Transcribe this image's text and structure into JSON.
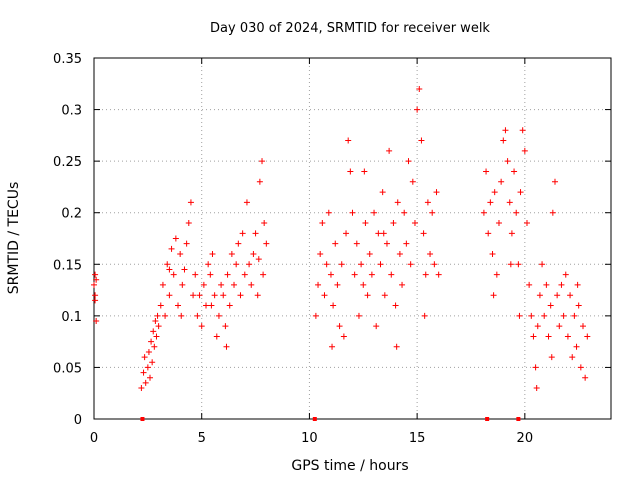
{
  "chart_data": {
    "type": "scatter",
    "title": "Day 030 of 2024, SRMTID for receiver welk",
    "xlabel": "GPS time / hours",
    "ylabel": "SRMTID / TECUs",
    "xlim": [
      0,
      24
    ],
    "ylim": [
      0,
      0.35
    ],
    "xticks": [
      0,
      5,
      10,
      15,
      20
    ],
    "xtick_labels": [
      "0",
      "5",
      "10",
      "15",
      "20"
    ],
    "yticks": [
      0,
      0.05,
      0.1,
      0.15,
      0.2,
      0.25,
      0.3,
      0.35
    ],
    "ytick_labels": [
      "0",
      "0.05",
      "0.1",
      "0.15",
      "0.2",
      "0.25",
      "0.3",
      "0.35"
    ],
    "grid": true,
    "marker": "plus",
    "color": "#ff0000",
    "gap_markers_x": [
      2.25,
      10.25,
      18.25,
      19.7
    ],
    "series": [
      {
        "name": "SRMTID",
        "points": [
          [
            0.0,
            0.13
          ],
          [
            0.05,
            0.14
          ],
          [
            0.05,
            0.12
          ],
          [
            0.1,
            0.095
          ],
          [
            0.05,
            0.115
          ],
          [
            0.1,
            0.135
          ],
          [
            2.2,
            0.03
          ],
          [
            2.3,
            0.045
          ],
          [
            2.35,
            0.06
          ],
          [
            2.4,
            0.035
          ],
          [
            2.5,
            0.05
          ],
          [
            2.55,
            0.065
          ],
          [
            2.6,
            0.04
          ],
          [
            2.65,
            0.075
          ],
          [
            2.7,
            0.055
          ],
          [
            2.75,
            0.085
          ],
          [
            2.8,
            0.07
          ],
          [
            2.85,
            0.095
          ],
          [
            2.9,
            0.08
          ],
          [
            2.95,
            0.1
          ],
          [
            3.0,
            0.09
          ],
          [
            3.1,
            0.11
          ],
          [
            3.2,
            0.13
          ],
          [
            3.3,
            0.1
          ],
          [
            3.4,
            0.15
          ],
          [
            3.5,
            0.12
          ],
          [
            3.6,
            0.165
          ],
          [
            3.7,
            0.14
          ],
          [
            3.8,
            0.175
          ],
          [
            3.9,
            0.11
          ],
          [
            4.0,
            0.16
          ],
          [
            4.1,
            0.13
          ],
          [
            4.2,
            0.145
          ],
          [
            4.3,
            0.17
          ],
          [
            4.4,
            0.19
          ],
          [
            4.5,
            0.21
          ],
          [
            4.6,
            0.12
          ],
          [
            4.7,
            0.14
          ],
          [
            4.8,
            0.1
          ],
          [
            4.9,
            0.12
          ],
          [
            5.0,
            0.09
          ],
          [
            5.1,
            0.13
          ],
          [
            5.2,
            0.11
          ],
          [
            5.3,
            0.15
          ],
          [
            5.4,
            0.14
          ],
          [
            5.5,
            0.16
          ],
          [
            5.6,
            0.12
          ],
          [
            5.7,
            0.08
          ],
          [
            5.8,
            0.1
          ],
          [
            5.9,
            0.13
          ],
          [
            6.0,
            0.12
          ],
          [
            6.1,
            0.09
          ],
          [
            6.2,
            0.14
          ],
          [
            6.3,
            0.11
          ],
          [
            6.4,
            0.16
          ],
          [
            6.5,
            0.13
          ],
          [
            6.6,
            0.15
          ],
          [
            6.7,
            0.17
          ],
          [
            6.8,
            0.12
          ],
          [
            6.9,
            0.18
          ],
          [
            7.0,
            0.14
          ],
          [
            7.1,
            0.21
          ],
          [
            7.2,
            0.15
          ],
          [
            7.3,
            0.13
          ],
          [
            7.4,
            0.16
          ],
          [
            7.5,
            0.18
          ],
          [
            7.6,
            0.12
          ],
          [
            7.7,
            0.23
          ],
          [
            7.8,
            0.25
          ],
          [
            7.9,
            0.19
          ],
          [
            8.0,
            0.17
          ],
          [
            7.65,
            0.155
          ],
          [
            3.5,
            0.145
          ],
          [
            4.05,
            0.1
          ],
          [
            6.15,
            0.07
          ],
          [
            5.45,
            0.11
          ],
          [
            7.85,
            0.14
          ],
          [
            10.3,
            0.1
          ],
          [
            10.4,
            0.13
          ],
          [
            10.5,
            0.16
          ],
          [
            10.6,
            0.19
          ],
          [
            10.7,
            0.12
          ],
          [
            10.8,
            0.15
          ],
          [
            10.9,
            0.2
          ],
          [
            11.0,
            0.14
          ],
          [
            11.1,
            0.11
          ],
          [
            11.2,
            0.17
          ],
          [
            11.3,
            0.13
          ],
          [
            11.4,
            0.09
          ],
          [
            11.5,
            0.15
          ],
          [
            11.6,
            0.08
          ],
          [
            11.7,
            0.18
          ],
          [
            11.8,
            0.27
          ],
          [
            11.9,
            0.24
          ],
          [
            12.0,
            0.2
          ],
          [
            12.1,
            0.14
          ],
          [
            12.2,
            0.17
          ],
          [
            12.3,
            0.1
          ],
          [
            12.4,
            0.15
          ],
          [
            12.5,
            0.13
          ],
          [
            12.6,
            0.19
          ],
          [
            12.7,
            0.12
          ],
          [
            12.8,
            0.16
          ],
          [
            12.9,
            0.14
          ],
          [
            13.0,
            0.2
          ],
          [
            13.1,
            0.09
          ],
          [
            13.2,
            0.18
          ],
          [
            13.3,
            0.15
          ],
          [
            13.4,
            0.22
          ],
          [
            13.5,
            0.12
          ],
          [
            13.6,
            0.17
          ],
          [
            13.7,
            0.26
          ],
          [
            13.8,
            0.14
          ],
          [
            13.9,
            0.19
          ],
          [
            14.0,
            0.11
          ],
          [
            14.1,
            0.21
          ],
          [
            14.2,
            0.16
          ],
          [
            14.3,
            0.13
          ],
          [
            14.4,
            0.2
          ],
          [
            14.5,
            0.17
          ],
          [
            14.6,
            0.25
          ],
          [
            14.7,
            0.15
          ],
          [
            14.8,
            0.23
          ],
          [
            14.9,
            0.19
          ],
          [
            15.0,
            0.3
          ],
          [
            15.1,
            0.32
          ],
          [
            15.2,
            0.27
          ],
          [
            15.3,
            0.18
          ],
          [
            15.4,
            0.14
          ],
          [
            15.5,
            0.21
          ],
          [
            15.6,
            0.16
          ],
          [
            15.7,
            0.2
          ],
          [
            15.8,
            0.15
          ],
          [
            15.9,
            0.22
          ],
          [
            16.0,
            0.14
          ],
          [
            11.05,
            0.07
          ],
          [
            12.55,
            0.24
          ],
          [
            14.05,
            0.07
          ],
          [
            15.35,
            0.1
          ],
          [
            13.45,
            0.18
          ],
          [
            18.1,
            0.2
          ],
          [
            18.2,
            0.24
          ],
          [
            18.3,
            0.18
          ],
          [
            18.4,
            0.21
          ],
          [
            18.5,
            0.16
          ],
          [
            18.6,
            0.22
          ],
          [
            18.7,
            0.14
          ],
          [
            18.8,
            0.19
          ],
          [
            18.9,
            0.23
          ],
          [
            19.0,
            0.27
          ],
          [
            19.1,
            0.28
          ],
          [
            19.2,
            0.25
          ],
          [
            19.3,
            0.21
          ],
          [
            19.4,
            0.18
          ],
          [
            19.5,
            0.24
          ],
          [
            19.6,
            0.2
          ],
          [
            19.7,
            0.15
          ],
          [
            19.8,
            0.22
          ],
          [
            19.9,
            0.28
          ],
          [
            20.0,
            0.26
          ],
          [
            20.1,
            0.19
          ],
          [
            20.2,
            0.13
          ],
          [
            20.3,
            0.1
          ],
          [
            20.4,
            0.08
          ],
          [
            20.5,
            0.05
          ],
          [
            20.6,
            0.09
          ],
          [
            20.7,
            0.12
          ],
          [
            20.8,
            0.15
          ],
          [
            20.9,
            0.1
          ],
          [
            21.0,
            0.13
          ],
          [
            21.1,
            0.08
          ],
          [
            21.2,
            0.11
          ],
          [
            21.3,
            0.2
          ],
          [
            21.4,
            0.23
          ],
          [
            21.5,
            0.12
          ],
          [
            21.6,
            0.09
          ],
          [
            21.7,
            0.13
          ],
          [
            21.8,
            0.1
          ],
          [
            21.9,
            0.14
          ],
          [
            22.0,
            0.08
          ],
          [
            22.1,
            0.12
          ],
          [
            22.2,
            0.06
          ],
          [
            22.3,
            0.1
          ],
          [
            22.4,
            0.07
          ],
          [
            22.5,
            0.11
          ],
          [
            22.6,
            0.05
          ],
          [
            22.7,
            0.09
          ],
          [
            22.8,
            0.04
          ],
          [
            22.9,
            0.08
          ],
          [
            18.55,
            0.12
          ],
          [
            20.55,
            0.03
          ],
          [
            19.75,
            0.1
          ],
          [
            22.45,
            0.13
          ],
          [
            21.25,
            0.06
          ],
          [
            19.35,
            0.15
          ]
        ]
      }
    ]
  }
}
